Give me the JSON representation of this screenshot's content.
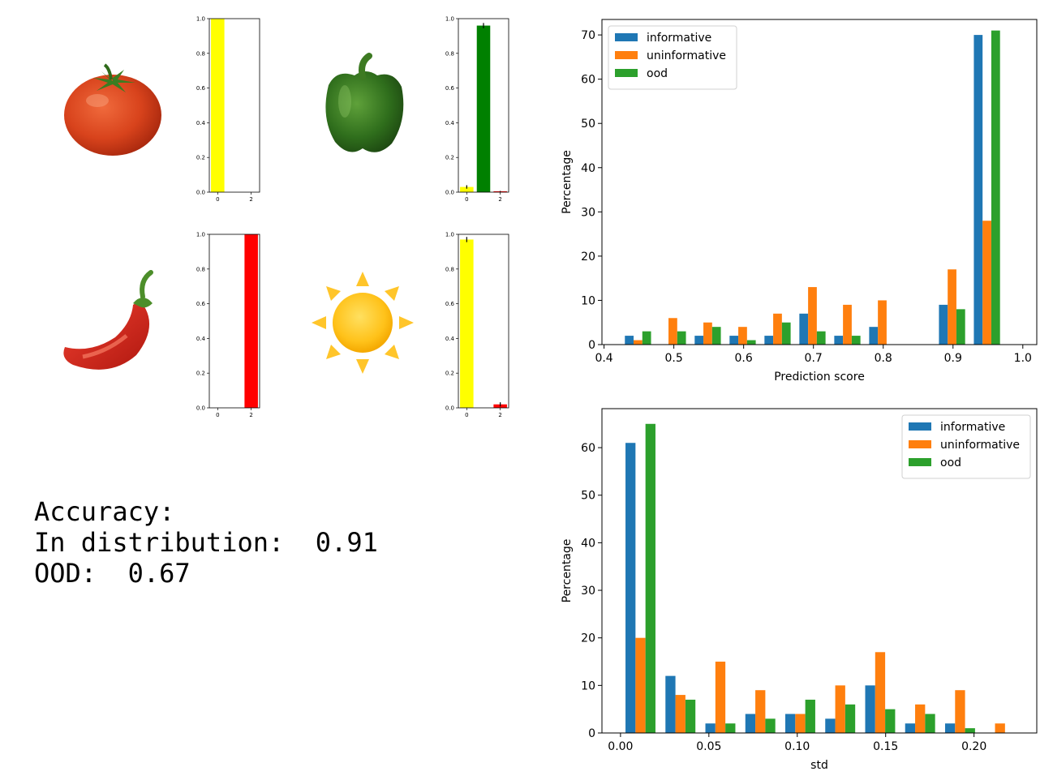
{
  "accuracy": {
    "heading": "Accuracy:",
    "in_distribution_label": "In distribution:",
    "in_distribution_value": "0.91",
    "ood_label": "OOD:",
    "ood_value": "0.67"
  },
  "images": [
    {
      "name": "tomato-icon"
    },
    {
      "name": "green-pepper-icon"
    },
    {
      "name": "chili-pepper-icon"
    },
    {
      "name": "sun-icon"
    }
  ],
  "chart_data": [
    {
      "type": "bar",
      "id": "mini-tomato",
      "categories": [
        0,
        1,
        2
      ],
      "values": [
        1.0,
        0.0,
        0.0
      ],
      "errors": [
        0,
        0,
        0
      ],
      "colors": [
        "#ffff00",
        "#008000",
        "#ff0000"
      ],
      "ylim": [
        0,
        1.0
      ],
      "yticks": [
        "0.0",
        "0.2",
        "0.4",
        "0.6",
        "0.8",
        "1.0"
      ],
      "xticks": [
        "0",
        "2"
      ]
    },
    {
      "type": "bar",
      "id": "mini-green-pepper",
      "categories": [
        0,
        1,
        2
      ],
      "values": [
        0.03,
        0.96,
        0.005
      ],
      "errors": [
        0.01,
        0.015,
        0.002
      ],
      "colors": [
        "#ffff00",
        "#008000",
        "#ff0000"
      ],
      "ylim": [
        0,
        1.0
      ],
      "yticks": [
        "0.0",
        "0.2",
        "0.4",
        "0.6",
        "0.8",
        "1.0"
      ],
      "xticks": [
        "0",
        "2"
      ]
    },
    {
      "type": "bar",
      "id": "mini-chili",
      "categories": [
        0,
        1,
        2
      ],
      "values": [
        0.0,
        0.0,
        1.0
      ],
      "errors": [
        0,
        0,
        0
      ],
      "colors": [
        "#ffff00",
        "#008000",
        "#ff0000"
      ],
      "ylim": [
        0,
        1.0
      ],
      "yticks": [
        "0.0",
        "0.2",
        "0.4",
        "0.6",
        "0.8",
        "1.0"
      ],
      "xticks": [
        "0",
        "2"
      ]
    },
    {
      "type": "bar",
      "id": "mini-sun",
      "categories": [
        0,
        1,
        2
      ],
      "values": [
        0.97,
        0.0,
        0.02
      ],
      "errors": [
        0.015,
        0,
        0.012
      ],
      "colors": [
        "#ffff00",
        "#008000",
        "#ff0000"
      ],
      "ylim": [
        0,
        1.0
      ],
      "yticks": [
        "0.0",
        "0.2",
        "0.4",
        "0.6",
        "0.8",
        "1.0"
      ],
      "xticks": [
        "0",
        "2"
      ]
    },
    {
      "type": "bar",
      "id": "hist-prediction",
      "xlabel": "Prediction score",
      "ylabel": "Percentage",
      "xlim": [
        0.397,
        1.02
      ],
      "ylim": [
        0,
        73.5
      ],
      "xticks": [
        0.4,
        0.5,
        0.6,
        0.7,
        0.8,
        0.9,
        1.0
      ],
      "xtick_labels": [
        "0.4",
        "0.5",
        "0.6",
        "0.7",
        "0.8",
        "0.9",
        "1.0"
      ],
      "yticks": [
        0,
        10,
        20,
        30,
        40,
        50,
        60,
        70
      ],
      "bin_starts": [
        0.4236,
        0.4736,
        0.5236,
        0.5736,
        0.6236,
        0.6736,
        0.7236,
        0.7736,
        0.8236,
        0.8736,
        0.9236,
        0.9736
      ],
      "bin_width": 0.05,
      "legend": "top-left",
      "series": [
        {
          "name": "informative",
          "color": "#1f77b4",
          "values": [
            2,
            0,
            2,
            2,
            2,
            7,
            2,
            4,
            0,
            9,
            70,
            0
          ]
        },
        {
          "name": "uninformative",
          "color": "#ff7f0e",
          "values": [
            1,
            6,
            5,
            4,
            7,
            13,
            9,
            10,
            0,
            17,
            28,
            0
          ]
        },
        {
          "name": "ood",
          "color": "#2ca02c",
          "values": [
            3,
            3,
            4,
            1,
            5,
            3,
            2,
            0,
            0,
            8,
            71,
            0
          ]
        }
      ]
    },
    {
      "type": "bar",
      "id": "hist-std",
      "xlabel": "std",
      "ylabel": "Percentage",
      "xlim": [
        -0.0105,
        0.2355
      ],
      "ylim": [
        0,
        68.2
      ],
      "xticks": [
        0.0,
        0.05,
        0.1,
        0.15,
        0.2
      ],
      "xtick_labels": [
        "0.00",
        "0.05",
        "0.10",
        "0.15",
        "0.20"
      ],
      "yticks": [
        0,
        10,
        20,
        30,
        40,
        50,
        60
      ],
      "bin_starts": [
        0.0,
        0.0226,
        0.0452,
        0.0678,
        0.0904,
        0.113,
        0.1356,
        0.1582,
        0.1808,
        0.2034
      ],
      "bin_width": 0.0226,
      "legend": "top-right",
      "series": [
        {
          "name": "informative",
          "color": "#1f77b4",
          "values": [
            61,
            12,
            2,
            4,
            4,
            3,
            10,
            2,
            2,
            0
          ]
        },
        {
          "name": "uninformative",
          "color": "#ff7f0e",
          "values": [
            20,
            8,
            15,
            9,
            4,
            10,
            17,
            6,
            9,
            2
          ]
        },
        {
          "name": "ood",
          "color": "#2ca02c",
          "values": [
            65,
            7,
            2,
            3,
            7,
            6,
            5,
            4,
            1,
            0
          ]
        }
      ]
    }
  ]
}
